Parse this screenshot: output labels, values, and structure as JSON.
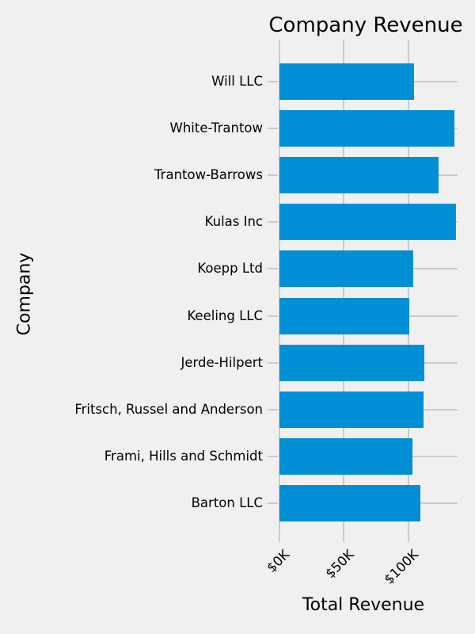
{
  "figure": {
    "background_color": "#f0f0f0",
    "bar_color": "#008fd5",
    "grid_color": "#cbcbcb",
    "text_color": "#000000"
  },
  "chart_data": {
    "type": "bar",
    "orientation": "horizontal",
    "title": "Company Revenue",
    "xlabel": "Total Revenue",
    "ylabel": "Company",
    "categories": [
      "Will LLC",
      "White-Trantow",
      "Trantow-Barrows",
      "Kulas Inc",
      "Koepp Ltd",
      "Keeling LLC",
      "Jerde-Hilpert",
      "Fritsch, Russel and Anderson",
      "Frami, Hills and Schmidt",
      "Barton LLC"
    ],
    "values": [
      104438,
      135842,
      123381,
      137352,
      103661,
      100934,
      112591,
      112215,
      103570,
      109439
    ],
    "xticks": [
      {
        "label": "$0K",
        "value": 0
      },
      {
        "label": "$50K",
        "value": 50000
      },
      {
        "label": "$100K",
        "value": 100000
      }
    ],
    "xlim": [
      0,
      138400
    ],
    "grid": true,
    "legend": false
  }
}
